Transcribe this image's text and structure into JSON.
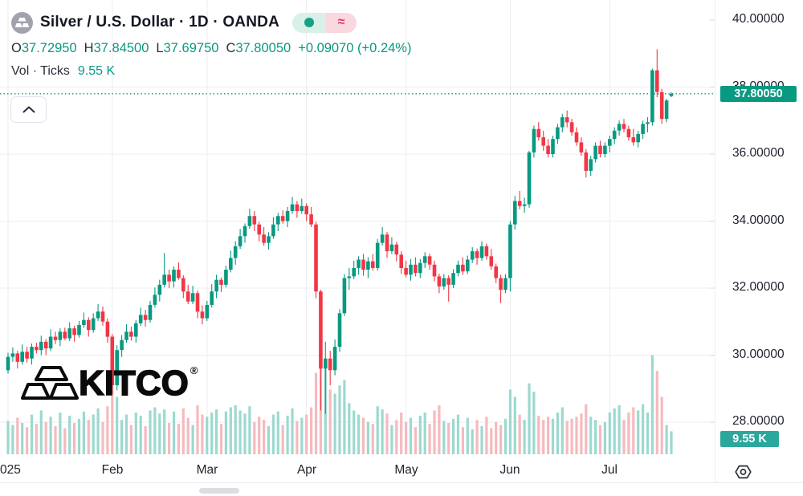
{
  "header": {
    "symbol_title": "Silver / U.S. Dollar · 1D · OANDA",
    "ohlc": {
      "open_label": "O",
      "open": "37.72950",
      "high_label": "H",
      "high": "37.84500",
      "low_label": "L",
      "low": "37.69750",
      "close_label": "C",
      "close": "37.80050",
      "change": "+0.09070 (+0.24%)"
    },
    "volume_row": {
      "label": "Vol · Ticks",
      "value": "9.55 K"
    },
    "toggle_pill": {
      "approx_symbol": "≈"
    }
  },
  "watermark": {
    "brand": "KITCO",
    "registered": "®"
  },
  "colors": {
    "up": "#089981",
    "down": "#f23645",
    "vol_up": "#9cd9cf",
    "vol_down": "#f5babe",
    "grid": "#edeef2",
    "tick": "#d6d9e0",
    "accent": "#089981",
    "price_tag_bg": "#089981",
    "vol_tag_bg": "#2ba79c",
    "pill_green_bg": "#d8f0e8",
    "pill_dot": "#12a285",
    "pill_pink_bg": "#f9d8df",
    "pill_tilde": "#e23a63",
    "symbol_icon_bg": "#a0a2ae"
  },
  "chart_data": {
    "type": "candlestick",
    "symbol": "Silver / U.S. Dollar",
    "interval": "1D",
    "exchange": "OANDA",
    "ylim": [
      27.0,
      40.6
    ],
    "grid": true,
    "last_price": {
      "label": "37.80050",
      "value": 37.8005
    },
    "last_volume_label": "9.55 K",
    "price_ticks": [
      {
        "label": "40.00000",
        "value": 40
      },
      {
        "label": "38.00000",
        "value": 38
      },
      {
        "label": "36.00000",
        "value": 36
      },
      {
        "label": "34.00000",
        "value": 34
      },
      {
        "label": "32.00000",
        "value": 32
      },
      {
        "label": "30.00000",
        "value": 30
      },
      {
        "label": "28.00000",
        "value": 28
      }
    ],
    "month_ticks": [
      {
        "label": "025",
        "index": 0,
        "align": "left"
      },
      {
        "label": "Feb",
        "index": 22
      },
      {
        "label": "Mar",
        "index": 42
      },
      {
        "label": "Apr",
        "index": 63
      },
      {
        "label": "May",
        "index": 84
      },
      {
        "label": "Jun",
        "index": 106
      },
      {
        "label": "Jul",
        "index": 127
      }
    ],
    "candles_note": "each candle = [open, high, low, close, relative_volume]",
    "candles": [
      [
        29.55,
        30.07,
        29.45,
        29.95,
        0.32
      ],
      [
        29.95,
        30.23,
        29.8,
        30.05,
        0.28
      ],
      [
        30.05,
        30.13,
        29.6,
        29.8,
        0.35
      ],
      [
        29.8,
        30.32,
        29.72,
        30.1,
        0.3
      ],
      [
        30.1,
        30.25,
        29.78,
        29.9,
        0.26
      ],
      [
        29.9,
        30.35,
        29.72,
        30.25,
        0.38
      ],
      [
        30.25,
        30.37,
        30.05,
        30.15,
        0.29
      ],
      [
        30.15,
        30.58,
        30.0,
        30.4,
        0.42
      ],
      [
        30.4,
        30.48,
        30.0,
        30.2,
        0.31
      ],
      [
        30.2,
        30.77,
        30.12,
        30.55,
        0.36
      ],
      [
        30.55,
        30.7,
        30.33,
        30.45,
        0.27
      ],
      [
        30.45,
        30.8,
        30.27,
        30.7,
        0.4
      ],
      [
        30.7,
        30.82,
        30.45,
        30.5,
        0.25
      ],
      [
        30.5,
        30.98,
        30.42,
        30.8,
        0.37
      ],
      [
        30.8,
        30.88,
        30.4,
        30.6,
        0.3
      ],
      [
        30.6,
        31.02,
        30.52,
        30.9,
        0.34
      ],
      [
        30.9,
        31.27,
        30.82,
        31.05,
        0.41
      ],
      [
        31.05,
        31.13,
        30.55,
        30.75,
        0.33
      ],
      [
        30.75,
        31.25,
        30.67,
        31.1,
        0.38
      ],
      [
        31.1,
        31.52,
        31.02,
        31.3,
        0.44
      ],
      [
        31.3,
        31.45,
        30.88,
        31.0,
        0.31
      ],
      [
        31.0,
        31.1,
        30.37,
        30.55,
        0.46
      ],
      [
        30.55,
        30.63,
        28.85,
        29.1,
        0.7
      ],
      [
        29.1,
        30.3,
        28.95,
        30.15,
        0.55
      ],
      [
        30.15,
        30.6,
        29.95,
        30.45,
        0.33
      ],
      [
        30.45,
        30.92,
        30.37,
        30.7,
        0.38
      ],
      [
        30.7,
        30.85,
        30.43,
        30.55,
        0.28
      ],
      [
        30.55,
        31.05,
        30.37,
        30.95,
        0.4
      ],
      [
        30.95,
        31.42,
        30.87,
        31.2,
        0.37
      ],
      [
        31.2,
        31.35,
        30.85,
        31.05,
        0.27
      ],
      [
        31.05,
        31.62,
        30.97,
        31.5,
        0.42
      ],
      [
        31.5,
        32.02,
        31.42,
        31.8,
        0.45
      ],
      [
        31.8,
        32.25,
        31.6,
        32.1,
        0.39
      ],
      [
        32.1,
        33.05,
        32.02,
        32.4,
        0.43
      ],
      [
        32.4,
        32.55,
        32.0,
        32.2,
        0.3
      ],
      [
        32.2,
        32.65,
        32.02,
        32.55,
        0.41
      ],
      [
        32.55,
        32.77,
        32.25,
        32.3,
        0.29
      ],
      [
        32.3,
        32.38,
        31.7,
        31.9,
        0.44
      ],
      [
        31.9,
        32.1,
        31.52,
        31.6,
        0.35
      ],
      [
        31.6,
        32.07,
        31.52,
        31.85,
        0.28
      ],
      [
        31.85,
        31.93,
        31.1,
        31.3,
        0.47
      ],
      [
        31.3,
        31.48,
        30.92,
        31.1,
        0.38
      ],
      [
        31.1,
        31.62,
        31.02,
        31.5,
        0.36
      ],
      [
        31.5,
        32.12,
        31.42,
        31.9,
        0.4
      ],
      [
        31.9,
        32.4,
        31.7,
        32.25,
        0.43
      ],
      [
        32.25,
        32.32,
        31.88,
        32.1,
        0.29
      ],
      [
        32.1,
        32.67,
        32.02,
        32.55,
        0.41
      ],
      [
        32.55,
        33.12,
        32.47,
        32.9,
        0.45
      ],
      [
        32.9,
        33.4,
        32.7,
        33.25,
        0.47
      ],
      [
        33.25,
        33.77,
        33.17,
        33.55,
        0.42
      ],
      [
        33.55,
        33.93,
        33.35,
        33.85,
        0.39
      ],
      [
        33.85,
        34.37,
        33.77,
        34.15,
        0.46
      ],
      [
        34.15,
        34.3,
        33.7,
        33.9,
        0.31
      ],
      [
        33.9,
        33.98,
        33.4,
        33.6,
        0.36
      ],
      [
        33.6,
        33.82,
        33.27,
        33.35,
        0.33
      ],
      [
        33.35,
        33.67,
        33.15,
        33.55,
        0.27
      ],
      [
        33.55,
        34.12,
        33.47,
        33.9,
        0.38
      ],
      [
        33.9,
        34.25,
        33.7,
        34.15,
        0.41
      ],
      [
        34.15,
        34.32,
        33.92,
        34.0,
        0.28
      ],
      [
        34.0,
        34.42,
        33.82,
        34.3,
        0.37
      ],
      [
        34.3,
        34.72,
        34.22,
        34.5,
        0.44
      ],
      [
        34.5,
        34.6,
        34.1,
        34.3,
        0.32
      ],
      [
        34.3,
        34.67,
        34.22,
        34.45,
        0.35
      ],
      [
        34.45,
        34.53,
        34.0,
        34.2,
        0.38
      ],
      [
        34.2,
        34.42,
        33.82,
        33.9,
        0.45
      ],
      [
        33.9,
        33.98,
        31.7,
        31.9,
        0.78
      ],
      [
        31.9,
        31.95,
        28.35,
        29.6,
        0.92
      ],
      [
        29.6,
        30.4,
        28.25,
        29.9,
        0.85
      ],
      [
        29.9,
        30.13,
        29.1,
        29.55,
        0.62
      ],
      [
        29.55,
        30.47,
        29.4,
        30.25,
        0.58
      ],
      [
        30.25,
        31.37,
        30.1,
        31.25,
        0.66
      ],
      [
        31.25,
        32.42,
        31.17,
        32.3,
        0.71
      ],
      [
        32.3,
        32.6,
        31.95,
        32.35,
        0.49
      ],
      [
        32.35,
        32.82,
        32.27,
        32.6,
        0.42
      ],
      [
        32.6,
        32.95,
        32.4,
        32.85,
        0.38
      ],
      [
        32.85,
        33.02,
        32.37,
        32.55,
        0.35
      ],
      [
        32.55,
        32.92,
        32.3,
        32.8,
        0.31
      ],
      [
        32.8,
        33.02,
        32.52,
        32.6,
        0.29
      ],
      [
        32.6,
        33.47,
        32.52,
        33.35,
        0.46
      ],
      [
        33.35,
        33.82,
        33.27,
        33.6,
        0.43
      ],
      [
        33.6,
        33.68,
        32.9,
        33.1,
        0.39
      ],
      [
        33.1,
        33.52,
        33.02,
        33.3,
        0.28
      ],
      [
        33.3,
        33.38,
        32.8,
        33.0,
        0.33
      ],
      [
        33.0,
        33.1,
        32.42,
        32.6,
        0.4
      ],
      [
        32.6,
        32.82,
        32.32,
        32.4,
        0.31
      ],
      [
        32.4,
        32.87,
        32.22,
        32.7,
        0.35
      ],
      [
        32.7,
        32.92,
        32.35,
        32.45,
        0.26
      ],
      [
        32.45,
        32.87,
        32.3,
        32.75,
        0.37
      ],
      [
        32.75,
        33.07,
        32.6,
        32.95,
        0.4
      ],
      [
        32.95,
        33.03,
        32.55,
        32.7,
        0.29
      ],
      [
        32.7,
        32.82,
        32.2,
        32.35,
        0.42
      ],
      [
        32.35,
        32.43,
        31.85,
        32.05,
        0.47
      ],
      [
        32.05,
        32.42,
        31.95,
        32.3,
        0.32
      ],
      [
        32.3,
        32.38,
        31.6,
        32.1,
        0.3
      ],
      [
        32.1,
        32.57,
        32.0,
        32.45,
        0.34
      ],
      [
        32.45,
        32.82,
        32.35,
        32.7,
        0.38
      ],
      [
        32.7,
        32.92,
        32.4,
        32.5,
        0.26
      ],
      [
        32.5,
        32.97,
        32.42,
        32.85,
        0.35
      ],
      [
        32.85,
        33.22,
        32.75,
        33.1,
        0.24
      ],
      [
        33.1,
        33.18,
        32.7,
        32.9,
        0.33
      ],
      [
        32.9,
        33.4,
        32.82,
        33.25,
        0.27
      ],
      [
        33.25,
        33.33,
        32.85,
        32.95,
        0.36
      ],
      [
        32.95,
        33.17,
        32.55,
        32.65,
        0.25
      ],
      [
        32.65,
        32.73,
        32.15,
        32.3,
        0.31
      ],
      [
        32.3,
        32.4,
        31.55,
        31.95,
        0.28
      ],
      [
        31.95,
        32.42,
        31.85,
        32.3,
        0.34
      ],
      [
        32.3,
        34.0,
        31.9,
        33.9,
        0.62
      ],
      [
        33.9,
        34.75,
        33.75,
        34.6,
        0.55
      ],
      [
        34.6,
        34.9,
        34.35,
        34.45,
        0.38
      ],
      [
        34.45,
        34.7,
        34.25,
        34.5,
        0.33
      ],
      [
        34.5,
        36.1,
        34.4,
        36.05,
        0.68
      ],
      [
        36.05,
        36.85,
        35.9,
        36.75,
        0.6
      ],
      [
        36.75,
        36.95,
        36.4,
        36.5,
        0.37
      ],
      [
        36.5,
        36.7,
        36.1,
        36.25,
        0.33
      ],
      [
        36.25,
        36.45,
        35.9,
        36.0,
        0.36
      ],
      [
        36.0,
        36.55,
        35.9,
        36.45,
        0.34
      ],
      [
        36.45,
        36.9,
        36.3,
        36.8,
        0.4
      ],
      [
        36.8,
        37.2,
        36.65,
        37.1,
        0.45
      ],
      [
        37.1,
        37.3,
        36.8,
        36.95,
        0.32
      ],
      [
        36.95,
        37.05,
        36.55,
        36.65,
        0.34
      ],
      [
        36.65,
        36.8,
        36.25,
        36.35,
        0.36
      ],
      [
        36.35,
        36.5,
        35.95,
        36.05,
        0.39
      ],
      [
        36.05,
        36.15,
        35.3,
        35.5,
        0.48
      ],
      [
        35.5,
        35.95,
        35.35,
        35.85,
        0.36
      ],
      [
        35.85,
        36.35,
        35.75,
        36.25,
        0.33
      ],
      [
        36.25,
        36.4,
        35.9,
        36.0,
        0.28
      ],
      [
        36.0,
        36.35,
        35.9,
        36.25,
        0.31
      ],
      [
        36.25,
        36.55,
        36.05,
        36.45,
        0.4
      ],
      [
        36.45,
        36.8,
        36.3,
        36.7,
        0.44
      ],
      [
        36.7,
        37.0,
        36.55,
        36.9,
        0.47
      ],
      [
        36.9,
        37.05,
        36.65,
        36.75,
        0.33
      ],
      [
        36.75,
        36.85,
        36.4,
        36.5,
        0.4
      ],
      [
        36.5,
        36.75,
        36.25,
        36.35,
        0.45
      ],
      [
        36.35,
        36.7,
        36.2,
        36.6,
        0.42
      ],
      [
        36.6,
        37.0,
        36.45,
        36.9,
        0.48
      ],
      [
        36.9,
        37.1,
        36.65,
        36.95,
        0.4
      ],
      [
        36.95,
        38.55,
        36.85,
        38.5,
        0.95
      ],
      [
        38.5,
        39.13,
        37.7,
        37.85,
        0.8
      ],
      [
        37.85,
        37.95,
        36.9,
        37.05,
        0.55
      ],
      [
        37.05,
        37.65,
        36.95,
        37.6,
        0.28
      ],
      [
        37.73,
        37.845,
        37.6975,
        37.8005,
        0.22
      ]
    ]
  }
}
